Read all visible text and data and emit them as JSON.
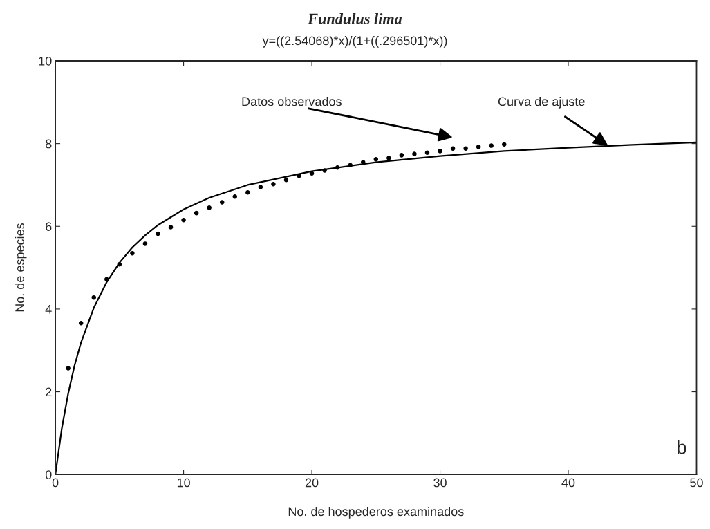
{
  "chart_data": {
    "type": "scatter",
    "title": "Fundulus lima",
    "subtitle": "y=((2.54068)*x)/(1+((.296501)*x))",
    "xlabel": "No. de hospederos examinados",
    "ylabel": "No. de especies",
    "xlim": [
      0,
      50
    ],
    "ylim": [
      0,
      10
    ],
    "xticks": [
      0,
      10,
      20,
      30,
      40,
      50
    ],
    "yticks": [
      0,
      2,
      4,
      6,
      8,
      10
    ],
    "grid": false,
    "series": [
      {
        "marker": "circle",
        "color": "#000000",
        "x": [
          1,
          2,
          3,
          4,
          5,
          6,
          7,
          8,
          9,
          10,
          11,
          12,
          13,
          14,
          15,
          16,
          17,
          18,
          19,
          20,
          21,
          22,
          23,
          24,
          25,
          26,
          27,
          28,
          29,
          30,
          31,
          32,
          33,
          34,
          35
        ],
        "values": [
          2.57,
          3.66,
          4.28,
          4.72,
          5.08,
          5.35,
          5.58,
          5.82,
          5.98,
          6.15,
          6.32,
          6.45,
          6.58,
          6.72,
          6.82,
          6.95,
          7.02,
          7.12,
          7.22,
          7.28,
          7.35,
          7.42,
          7.48,
          7.55,
          7.62,
          7.65,
          7.72,
          7.75,
          7.78,
          7.82,
          7.88,
          7.88,
          7.92,
          7.95,
          7.98
        ]
      },
      {
        "type": "line",
        "line_style": "solid",
        "color": "#000000",
        "x": [
          0,
          0.5,
          1,
          1.5,
          2,
          3,
          4,
          5,
          6,
          7,
          8,
          10,
          12,
          15,
          20,
          25,
          30,
          35,
          40,
          45,
          50
        ],
        "values": [
          0,
          1.11,
          1.96,
          2.64,
          3.19,
          4.03,
          4.65,
          5.12,
          5.49,
          5.78,
          6.03,
          6.41,
          6.69,
          7.0,
          7.33,
          7.55,
          7.7,
          7.82,
          7.9,
          7.97,
          8.03
        ]
      }
    ],
    "annotations": [
      "Datos observados",
      {
        "text": "Curva de ajuste",
        "x": 43.1,
        "y": 7.95
      },
      "b"
    ]
  }
}
